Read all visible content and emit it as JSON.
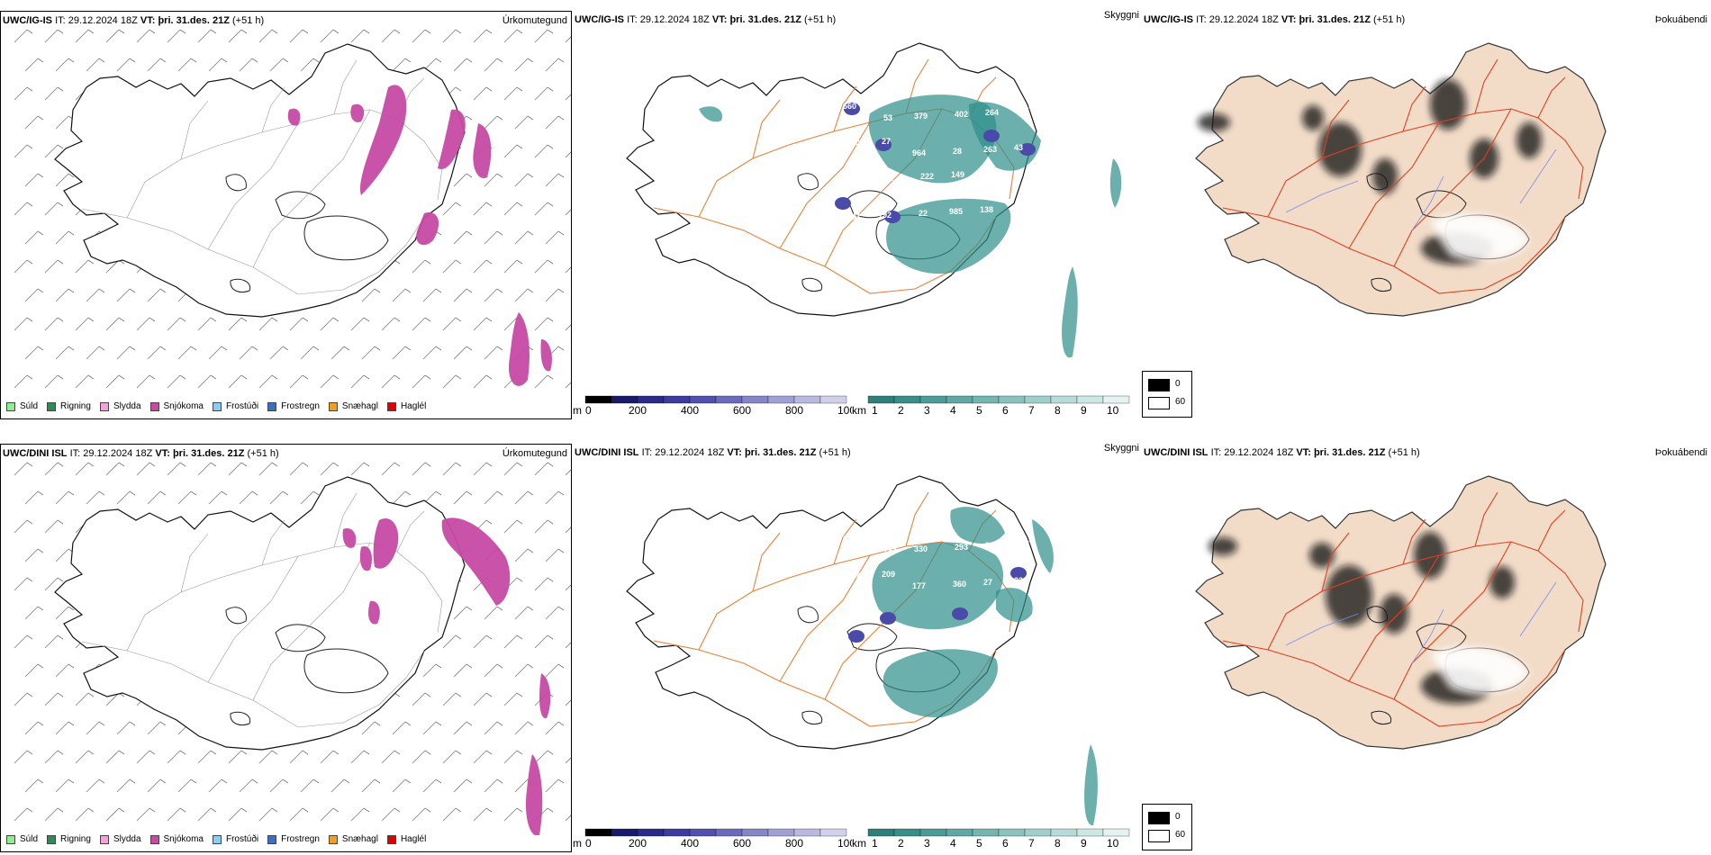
{
  "rows": [
    {
      "model": "UWC/IG-IS",
      "it_label": "IT:",
      "it_value": "29.12.2024 18Z",
      "vt_label": "VT:",
      "vt_value": "þri. 31.des. 21Z",
      "lead": "(+51 h)",
      "titles": [
        "Úrkomutegund",
        "Skyggni",
        "Þokuábendi"
      ]
    },
    {
      "model": "UWC/DINI ISL",
      "it_label": "IT:",
      "it_value": "29.12.2024 18Z",
      "vt_label": "VT:",
      "vt_value": "þri. 31.des. 21Z",
      "lead": "(+51 h)",
      "titles": [
        "Úrkomutegund",
        "Skyggni",
        "Þokuábendi"
      ]
    }
  ],
  "precip_legend": [
    {
      "label": "Súld",
      "color": "#90ee90"
    },
    {
      "label": "Rigning",
      "color": "#2e8b57"
    },
    {
      "label": "Slydda",
      "color": "#f5a3d6"
    },
    {
      "label": "Snjókoma",
      "color": "#c64aa4"
    },
    {
      "label": "Frostúði",
      "color": "#87cefa"
    },
    {
      "label": "Frostregn",
      "color": "#3a6fc4"
    },
    {
      "label": "Snæhagl",
      "color": "#f0a020"
    },
    {
      "label": "Haglél",
      "color": "#e00000"
    }
  ],
  "visibility_scales": {
    "meters_unit": "m",
    "meters_ticks": [
      "0",
      "200",
      "400",
      "600",
      "800",
      "1000"
    ],
    "km_unit": "km",
    "km_ticks": [
      "1",
      "2",
      "3",
      "4",
      "5",
      "6",
      "7",
      "8",
      "9",
      "10"
    ]
  },
  "fog_scale": {
    "ticks": [
      "0",
      "60"
    ]
  },
  "visibility_labels": [
    [
      "660",
      "53",
      "379",
      "402",
      "264",
      "445",
      "500",
      "27",
      "964",
      "28",
      "263",
      "43",
      "176",
      "281",
      "222",
      "149",
      "865",
      "190",
      "861",
      "192",
      "22",
      "985",
      "138",
      "82"
    ],
    [
      "863",
      "784",
      "330",
      "293",
      "339",
      "338",
      "270",
      "209",
      "177",
      "360",
      "27",
      "222",
      "331"
    ]
  ],
  "colors": {
    "snow": "#c64aa4",
    "vis_teal": "#2e8f8a",
    "vis_blue": "#4a4aa8",
    "roads": "#e8823a",
    "fog_land": "#f2dcc8",
    "fog_roads": "#e04020"
  }
}
